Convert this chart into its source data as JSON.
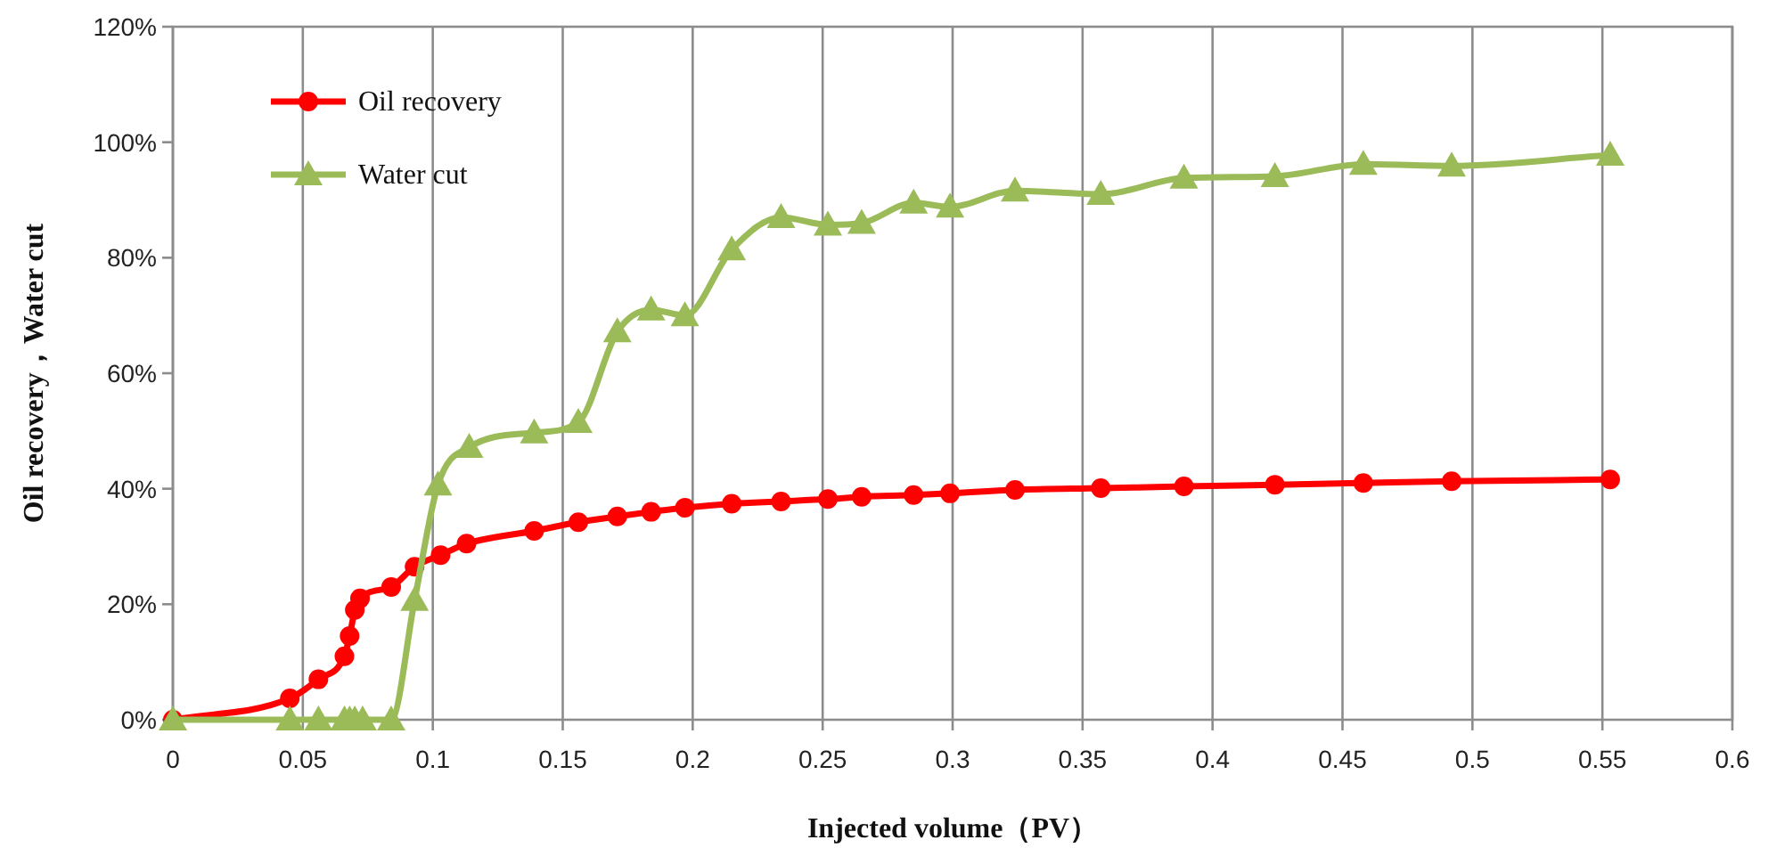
{
  "chart_data": {
    "type": "line",
    "xlabel": "Injected volume（PV）",
    "ylabel": "Oil recovery，Water cut",
    "xlim": [
      0,
      0.6
    ],
    "xticks": [
      0,
      0.05,
      0.1,
      0.15,
      0.2,
      0.25,
      0.3,
      0.35,
      0.4,
      0.45,
      0.5,
      0.55,
      0.6
    ],
    "ylim": [
      0,
      120
    ],
    "yticks": [
      {
        "value": 0,
        "label": "0%"
      },
      {
        "value": 20,
        "label": "20%"
      },
      {
        "value": 40,
        "label": "40%"
      },
      {
        "value": 60,
        "label": "60%"
      },
      {
        "value": 80,
        "label": "80%"
      },
      {
        "value": 100,
        "label": "100%"
      },
      {
        "value": 120,
        "label": "120%"
      }
    ],
    "grid": "x",
    "legend": "top left",
    "line_style": "solid",
    "series": [
      {
        "name": "Oil recovery",
        "color": "#ff0000",
        "marker": "circle",
        "x": [
          0,
          0.045,
          0.056,
          0.066,
          0.068,
          0.07,
          0.072,
          0.084,
          0.093,
          0.103,
          0.113,
          0.139,
          0.156,
          0.171,
          0.184,
          0.197,
          0.215,
          0.234,
          0.252,
          0.265,
          0.285,
          0.299,
          0.324,
          0.357,
          0.389,
          0.424,
          0.458,
          0.492,
          0.553
        ],
        "values": [
          0,
          3.7,
          7,
          11,
          14.5,
          19,
          21,
          23,
          26.5,
          28.5,
          30.5,
          32.7,
          34.2,
          35.2,
          36,
          36.7,
          37.4,
          37.8,
          38.2,
          38.6,
          38.9,
          39.2,
          39.8,
          40.1,
          40.4,
          40.7,
          41,
          41.3,
          41.6
        ]
      },
      {
        "name": "Water cut",
        "color": "#9bbb59",
        "marker": "triangle",
        "x": [
          0,
          0.045,
          0.056,
          0.066,
          0.068,
          0.07,
          0.073,
          0.084,
          0.093,
          0.102,
          0.114,
          0.139,
          0.156,
          0.171,
          0.184,
          0.197,
          0.215,
          0.234,
          0.252,
          0.265,
          0.285,
          0.299,
          0.324,
          0.357,
          0.389,
          0.424,
          0.458,
          0.492,
          0.553
        ],
        "values": [
          0,
          0,
          0,
          0,
          0,
          0,
          0,
          0,
          20.7,
          40.7,
          47.2,
          49.7,
          51.5,
          67.2,
          71,
          70,
          81.4,
          87,
          85.7,
          86,
          89.5,
          88.8,
          91.6,
          91,
          93.8,
          94.1,
          96.2,
          95.9,
          97.8
        ]
      }
    ]
  }
}
